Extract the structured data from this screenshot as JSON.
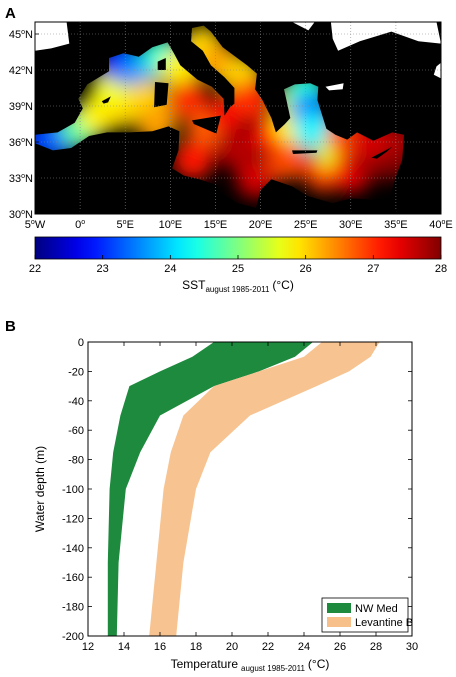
{
  "chart_data": [
    {
      "type": "heatmap",
      "panel_label": "A",
      "x_ticks": [
        {
          "text": "5",
          "deg": true,
          "suffix": "W",
          "value": -5
        },
        {
          "text": "0",
          "deg": true,
          "suffix": "",
          "value": 0
        },
        {
          "text": "5",
          "deg": true,
          "suffix": "E",
          "value": 5
        },
        {
          "text": "10",
          "deg": true,
          "suffix": "E",
          "value": 10
        },
        {
          "text": "15",
          "deg": true,
          "suffix": "E",
          "value": 15
        },
        {
          "text": "20",
          "deg": true,
          "suffix": "E",
          "value": 20
        },
        {
          "text": "25",
          "deg": true,
          "suffix": "E",
          "value": 25
        },
        {
          "text": "30",
          "deg": true,
          "suffix": "E",
          "value": 30
        },
        {
          "text": "35",
          "deg": true,
          "suffix": "E",
          "value": 35
        },
        {
          "text": "40",
          "deg": true,
          "suffix": "E",
          "value": 40
        }
      ],
      "y_ticks": [
        {
          "text": "30",
          "deg": true,
          "suffix": "N",
          "value": 30
        },
        {
          "text": "33",
          "deg": true,
          "suffix": "N",
          "value": 33
        },
        {
          "text": "36",
          "deg": true,
          "suffix": "N",
          "value": 36
        },
        {
          "text": "39",
          "deg": true,
          "suffix": "N",
          "value": 39
        },
        {
          "text": "42",
          "deg": true,
          "suffix": "N",
          "value": 42
        },
        {
          "text": "45",
          "deg": true,
          "suffix": "N",
          "value": 45
        }
      ],
      "xlim": [
        -5,
        40
      ],
      "ylim": [
        30,
        46
      ],
      "grid": "dotted",
      "colorbar": {
        "min": 22,
        "max": 28,
        "ticks": [
          "22",
          "23",
          "24",
          "25",
          "26",
          "27",
          "28"
        ],
        "label_main": "SST",
        "label_sub": "august 1985-2011",
        "label_unit": "(°C)",
        "colormap": "jet"
      },
      "sst_field": [
        {
          "lon": -4.5,
          "lat": 36.2,
          "sst": 22.6
        },
        {
          "lon": -2.5,
          "lat": 36.3,
          "sst": 23.3
        },
        {
          "lon": 0.0,
          "lat": 37.2,
          "sst": 24.8
        },
        {
          "lon": 2.0,
          "lat": 38.3,
          "sst": 25.8
        },
        {
          "lon": 4.5,
          "lat": 38.8,
          "sst": 26.0
        },
        {
          "lon": 3.5,
          "lat": 40.5,
          "sst": 25.7
        },
        {
          "lon": 4.5,
          "lat": 42.6,
          "sst": 22.9
        },
        {
          "lon": 6.5,
          "lat": 42.0,
          "sst": 23.6
        },
        {
          "lon": 7.5,
          "lat": 39.5,
          "sst": 26.0
        },
        {
          "lon": 8.5,
          "lat": 37.5,
          "sst": 26.3
        },
        {
          "lon": 9.0,
          "lat": 43.2,
          "sst": 24.5
        },
        {
          "lon": 11.0,
          "lat": 42.0,
          "sst": 25.8
        },
        {
          "lon": 12.0,
          "lat": 39.5,
          "sst": 27.0
        },
        {
          "lon": 14.0,
          "lat": 37.0,
          "sst": 26.7
        },
        {
          "lon": 13.5,
          "lat": 44.0,
          "sst": 26.0
        },
        {
          "lon": 15.5,
          "lat": 42.5,
          "sst": 26.3
        },
        {
          "lon": 18.0,
          "lat": 41.5,
          "sst": 26.0
        },
        {
          "lon": 16.5,
          "lat": 38.5,
          "sst": 27.3
        },
        {
          "lon": 19.0,
          "lat": 39.5,
          "sst": 27.0
        },
        {
          "lon": 12.5,
          "lat": 34.5,
          "sst": 27.1
        },
        {
          "lon": 17.0,
          "lat": 35.5,
          "sst": 27.7
        },
        {
          "lon": 19.5,
          "lat": 33.0,
          "sst": 27.5
        },
        {
          "lon": 21.0,
          "lat": 36.5,
          "sst": 27.2
        },
        {
          "lon": 23.0,
          "lat": 34.5,
          "sst": 26.8
        },
        {
          "lon": 23.5,
          "lat": 37.5,
          "sst": 25.8
        },
        {
          "lon": 24.0,
          "lat": 39.5,
          "sst": 25.5
        },
        {
          "lon": 25.0,
          "lat": 40.2,
          "sst": 24.5
        },
        {
          "lon": 25.5,
          "lat": 38.5,
          "sst": 23.5
        },
        {
          "lon": 26.0,
          "lat": 36.8,
          "sst": 24.2
        },
        {
          "lon": 27.0,
          "lat": 33.5,
          "sst": 26.9
        },
        {
          "lon": 28.5,
          "lat": 35.0,
          "sst": 25.6
        },
        {
          "lon": 30.0,
          "lat": 33.5,
          "sst": 27.3
        },
        {
          "lon": 32.0,
          "lat": 34.5,
          "sst": 27.8
        },
        {
          "lon": 34.5,
          "lat": 34.5,
          "sst": 28.0
        },
        {
          "lon": 35.5,
          "lat": 36.0,
          "sst": 27.8
        },
        {
          "lon": 29.5,
          "lat": 36.5,
          "sst": 26.8
        },
        {
          "lon": 32.0,
          "lat": 36.3,
          "sst": 27.5
        }
      ]
    },
    {
      "type": "area",
      "panel_label": "B",
      "xlabel_main": "Temperature",
      "xlabel_sub": "august 1985-2011",
      "xlabel_unit": "(°C)",
      "ylabel": "Water depth (m)",
      "xlim": [
        12,
        30
      ],
      "ylim": [
        -200,
        0
      ],
      "x_ticks": [
        "12",
        "14",
        "16",
        "18",
        "20",
        "22",
        "24",
        "26",
        "28",
        "30"
      ],
      "y_ticks": [
        "0",
        "-20",
        "-40",
        "-60",
        "-80",
        "-100",
        "-120",
        "-140",
        "-160",
        "-180",
        "-200"
      ],
      "legend_position": "bottom-right",
      "series": [
        {
          "name": "NW Med",
          "color": "#1e8a3e",
          "depth": [
            0,
            -10,
            -20,
            -30,
            -50,
            -75,
            -100,
            -150,
            -200
          ],
          "t_min": [
            19.0,
            17.8,
            16.0,
            14.3,
            13.8,
            13.4,
            13.2,
            13.1,
            13.1
          ],
          "t_max": [
            24.5,
            23.5,
            21.5,
            19.0,
            16.0,
            14.9,
            14.1,
            13.7,
            13.6
          ]
        },
        {
          "name": "Levantine B",
          "color": "#f7c08a",
          "depth": [
            0,
            -10,
            -20,
            -30,
            -50,
            -75,
            -100,
            -150,
            -200
          ],
          "t_min": [
            25.0,
            24.0,
            21.5,
            19.0,
            17.3,
            16.6,
            16.2,
            15.8,
            15.4
          ],
          "t_max": [
            28.2,
            27.7,
            26.5,
            24.7,
            21.0,
            18.8,
            18.0,
            17.3,
            16.9
          ]
        }
      ]
    }
  ]
}
